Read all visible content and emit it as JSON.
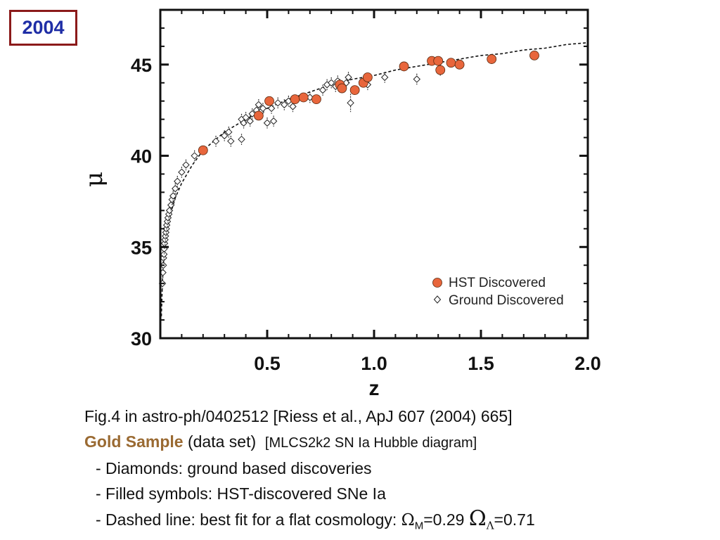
{
  "badge": {
    "year": "2004"
  },
  "chart_data": {
    "type": "scatter",
    "title": "",
    "xlabel": "z",
    "ylabel": "μ",
    "xlim": [
      0,
      2.0
    ],
    "ylim": [
      30,
      48
    ],
    "xticks": [
      0.5,
      1.0,
      1.5,
      2.0
    ],
    "xtick_labels": [
      "0.5",
      "1.0",
      "1.5",
      "2.0"
    ],
    "yticks": [
      30,
      35,
      40,
      45
    ],
    "ytick_labels": [
      "30",
      "35",
      "40",
      "45"
    ],
    "legend_position": "bottom-right",
    "grid": false,
    "series": [
      {
        "name": "HST Discovered",
        "marker": "filled-circle",
        "color": "#e8663c",
        "points": [
          {
            "x": 0.2,
            "y": 40.3,
            "err": 0.15
          },
          {
            "x": 0.46,
            "y": 42.2,
            "err": 0.2
          },
          {
            "x": 0.51,
            "y": 43.0,
            "err": 0.2
          },
          {
            "x": 0.63,
            "y": 43.1,
            "err": 0.2
          },
          {
            "x": 0.67,
            "y": 43.2,
            "err": 0.2
          },
          {
            "x": 0.73,
            "y": 43.1,
            "err": 0.2
          },
          {
            "x": 0.84,
            "y": 43.9,
            "err": 0.3
          },
          {
            "x": 0.85,
            "y": 43.7,
            "err": 0.25
          },
          {
            "x": 0.91,
            "y": 43.6,
            "err": 0.25
          },
          {
            "x": 0.95,
            "y": 44.0,
            "err": 0.25
          },
          {
            "x": 0.97,
            "y": 44.3,
            "err": 0.25
          },
          {
            "x": 1.14,
            "y": 44.9,
            "err": 0.25
          },
          {
            "x": 1.27,
            "y": 45.2,
            "err": 0.25
          },
          {
            "x": 1.3,
            "y": 45.2,
            "err": 0.25
          },
          {
            "x": 1.31,
            "y": 44.7,
            "err": 0.3
          },
          {
            "x": 1.36,
            "y": 45.1,
            "err": 0.25
          },
          {
            "x": 1.4,
            "y": 45.0,
            "err": 0.25
          },
          {
            "x": 1.55,
            "y": 45.3,
            "err": 0.25
          },
          {
            "x": 1.75,
            "y": 45.5,
            "err": 0.25
          }
        ]
      },
      {
        "name": "Ground Discovered",
        "marker": "open-diamond",
        "color": "#222222",
        "points": [
          {
            "x": 0.01,
            "y": 33.0,
            "err": 0.3
          },
          {
            "x": 0.012,
            "y": 33.6,
            "err": 0.3
          },
          {
            "x": 0.014,
            "y": 34.0,
            "err": 0.3
          },
          {
            "x": 0.015,
            "y": 34.4,
            "err": 0.3
          },
          {
            "x": 0.017,
            "y": 34.6,
            "err": 0.3
          },
          {
            "x": 0.018,
            "y": 34.9,
            "err": 0.3
          },
          {
            "x": 0.02,
            "y": 35.2,
            "err": 0.3
          },
          {
            "x": 0.022,
            "y": 35.4,
            "err": 0.3
          },
          {
            "x": 0.024,
            "y": 35.6,
            "err": 0.3
          },
          {
            "x": 0.026,
            "y": 35.8,
            "err": 0.3
          },
          {
            "x": 0.028,
            "y": 36.0,
            "err": 0.3
          },
          {
            "x": 0.03,
            "y": 36.2,
            "err": 0.3
          },
          {
            "x": 0.033,
            "y": 36.4,
            "err": 0.3
          },
          {
            "x": 0.036,
            "y": 36.6,
            "err": 0.3
          },
          {
            "x": 0.04,
            "y": 36.8,
            "err": 0.3
          },
          {
            "x": 0.043,
            "y": 37.0,
            "err": 0.3
          },
          {
            "x": 0.05,
            "y": 37.3,
            "err": 0.3
          },
          {
            "x": 0.055,
            "y": 37.6,
            "err": 0.3
          },
          {
            "x": 0.06,
            "y": 37.8,
            "err": 0.3
          },
          {
            "x": 0.07,
            "y": 38.2,
            "err": 0.3
          },
          {
            "x": 0.08,
            "y": 38.6,
            "err": 0.3
          },
          {
            "x": 0.1,
            "y": 39.1,
            "err": 0.3
          },
          {
            "x": 0.12,
            "y": 39.5,
            "err": 0.3
          },
          {
            "x": 0.16,
            "y": 40.0,
            "err": 0.3
          },
          {
            "x": 0.26,
            "y": 40.8,
            "err": 0.3
          },
          {
            "x": 0.3,
            "y": 41.1,
            "err": 0.3
          },
          {
            "x": 0.32,
            "y": 41.3,
            "err": 0.3
          },
          {
            "x": 0.33,
            "y": 40.8,
            "err": 0.3
          },
          {
            "x": 0.38,
            "y": 42.0,
            "err": 0.3
          },
          {
            "x": 0.39,
            "y": 41.8,
            "err": 0.3
          },
          {
            "x": 0.4,
            "y": 42.1,
            "err": 0.3
          },
          {
            "x": 0.42,
            "y": 41.9,
            "err": 0.3
          },
          {
            "x": 0.38,
            "y": 40.9,
            "err": 0.3
          },
          {
            "x": 0.43,
            "y": 42.3,
            "err": 0.3
          },
          {
            "x": 0.45,
            "y": 42.5,
            "err": 0.3
          },
          {
            "x": 0.46,
            "y": 42.8,
            "err": 0.3
          },
          {
            "x": 0.47,
            "y": 42.4,
            "err": 0.3
          },
          {
            "x": 0.48,
            "y": 42.6,
            "err": 0.3
          },
          {
            "x": 0.5,
            "y": 41.8,
            "err": 0.3
          },
          {
            "x": 0.52,
            "y": 42.6,
            "err": 0.3
          },
          {
            "x": 0.53,
            "y": 41.9,
            "err": 0.3
          },
          {
            "x": 0.55,
            "y": 42.9,
            "err": 0.3
          },
          {
            "x": 0.58,
            "y": 42.8,
            "err": 0.3
          },
          {
            "x": 0.6,
            "y": 43.0,
            "err": 0.3
          },
          {
            "x": 0.62,
            "y": 42.7,
            "err": 0.3
          },
          {
            "x": 0.7,
            "y": 43.2,
            "err": 0.3
          },
          {
            "x": 0.76,
            "y": 43.6,
            "err": 0.3
          },
          {
            "x": 0.78,
            "y": 43.9,
            "err": 0.3
          },
          {
            "x": 0.8,
            "y": 44.0,
            "err": 0.3
          },
          {
            "x": 0.82,
            "y": 43.8,
            "err": 0.3
          },
          {
            "x": 0.83,
            "y": 44.1,
            "err": 0.3
          },
          {
            "x": 0.87,
            "y": 44.0,
            "err": 0.3
          },
          {
            "x": 0.88,
            "y": 44.3,
            "err": 0.3
          },
          {
            "x": 0.89,
            "y": 42.9,
            "err": 0.5
          },
          {
            "x": 0.97,
            "y": 43.9,
            "err": 0.3
          },
          {
            "x": 1.05,
            "y": 44.3,
            "err": 0.3
          },
          {
            "x": 1.2,
            "y": 44.2,
            "err": 0.3
          }
        ]
      }
    ],
    "fit_line": {
      "style": "dashed",
      "x": [
        0.005,
        0.01,
        0.015,
        0.02,
        0.03,
        0.04,
        0.05,
        0.07,
        0.1,
        0.15,
        0.2,
        0.3,
        0.4,
        0.5,
        0.6,
        0.7,
        0.8,
        0.9,
        1.0,
        1.1,
        1.2,
        1.3,
        1.4,
        1.5,
        1.6,
        1.7,
        1.8,
        1.9,
        2.0
      ],
      "y": [
        31.2,
        33.1,
        34.2,
        34.8,
        35.7,
        36.4,
        36.9,
        37.7,
        38.5,
        39.5,
        40.3,
        41.3,
        42.0,
        42.6,
        43.1,
        43.5,
        43.9,
        44.2,
        44.4,
        44.7,
        44.9,
        45.1,
        45.3,
        45.5,
        45.6,
        45.8,
        45.9,
        46.1,
        46.2
      ]
    }
  },
  "caption": {
    "line1": "Fig.4  in  astro-ph/0402512  [Riess et al., ApJ 607 (2004) 665]",
    "gold_label": "Gold Sample",
    "gold_rest": " (data set)  ",
    "gold_small": "[MLCS2k2 SN Ia Hubble diagram]",
    "bullet1": "- Diamonds: ground based discoveries",
    "bullet2": "- Filled symbols: HST-discovered SNe Ia",
    "bullet3_text": "- Dashed line: best fit for a flat cosmology: ",
    "omega_symbol": "Ω",
    "omega_m_sub": "M",
    "omega_m_val": "=0.29 ",
    "omega_lambda_sub": "Λ",
    "omega_lambda_val": "=0.71"
  }
}
